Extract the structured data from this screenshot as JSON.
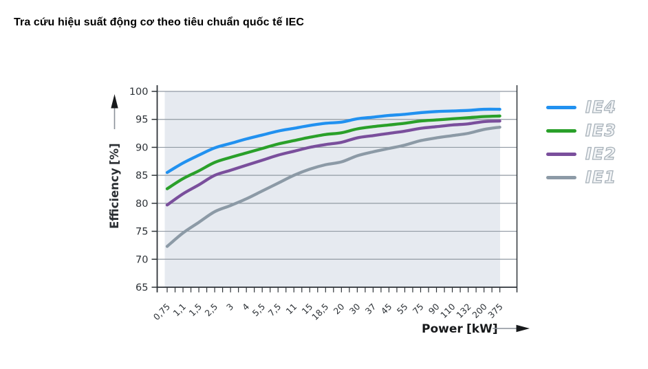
{
  "title": "Tra cứu hiệu suất động cơ theo tiêu chuẩn quốc tế IEC",
  "chart_data": {
    "type": "line",
    "xlabel": "Power",
    "xlabel_unit": "[kW]",
    "ylabel": "Efficiency",
    "ylabel_unit": "[%]",
    "ylim": [
      65,
      100
    ],
    "y_ticks": [
      65,
      70,
      75,
      80,
      85,
      90,
      95,
      100
    ],
    "grid": true,
    "legend_position": "right",
    "plot_band_color": "#e6eaf0",
    "axis_color": "#2e3338",
    "gridline_color": "#9099a2",
    "categories": [
      "0,75",
      "1,1",
      "1,5",
      "2,5",
      "3",
      "4",
      "5,5",
      "7,5",
      "11",
      "15",
      "18,5",
      "20",
      "30",
      "37",
      "45",
      "55",
      "75",
      "90",
      "110",
      "132",
      "200",
      "375"
    ],
    "series": [
      {
        "name": "IE4",
        "color": "#2191f0",
        "values": [
          85.5,
          87.2,
          88.6,
          89.9,
          90.7,
          91.5,
          92.2,
          92.9,
          93.4,
          93.9,
          94.3,
          94.5,
          95.1,
          95.4,
          95.7,
          95.9,
          96.2,
          96.4,
          96.5,
          96.6,
          96.8,
          96.8
        ]
      },
      {
        "name": "IE3",
        "color": "#2aa02a",
        "values": [
          82.6,
          84.4,
          85.8,
          87.3,
          88.2,
          89.0,
          89.8,
          90.6,
          91.2,
          91.8,
          92.3,
          92.6,
          93.3,
          93.7,
          94.0,
          94.3,
          94.7,
          94.9,
          95.1,
          95.3,
          95.5,
          95.6
        ]
      },
      {
        "name": "IE2",
        "color": "#7a4f9c",
        "values": [
          79.7,
          81.7,
          83.3,
          85.0,
          85.9,
          86.8,
          87.7,
          88.6,
          89.3,
          90.0,
          90.5,
          90.9,
          91.7,
          92.1,
          92.5,
          92.9,
          93.4,
          93.7,
          94.0,
          94.2,
          94.6,
          94.7
        ]
      },
      {
        "name": "IE1",
        "color": "#8c9aa6",
        "values": [
          72.3,
          74.7,
          76.6,
          78.5,
          79.6,
          80.8,
          82.2,
          83.6,
          85.0,
          86.1,
          86.9,
          87.4,
          88.5,
          89.2,
          89.8,
          90.4,
          91.2,
          91.7,
          92.1,
          92.5,
          93.2,
          93.6
        ]
      }
    ]
  }
}
